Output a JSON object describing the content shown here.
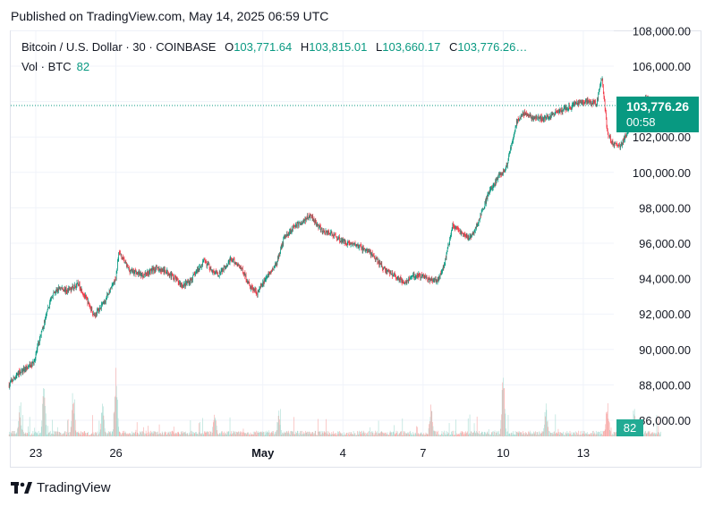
{
  "header": {
    "published": "Published on TradingView.com, May 14, 2025 06:59 UTC"
  },
  "legend": {
    "symbol": "Bitcoin / U.S. Dollar · 30 · COINBASE",
    "o_label": "O",
    "o": "103,771.64",
    "h_label": "H",
    "h": "103,815.01",
    "l_label": "L",
    "l": "103,660.17",
    "c_label": "C",
    "c": "103,776.26…",
    "vol_label": "Vol · BTC",
    "vol": "82"
  },
  "badges": {
    "price": "103,776.26",
    "countdown": "00:58",
    "volume": "82"
  },
  "footer": {
    "brand": "TradingView"
  },
  "colors": {
    "up": "#089981",
    "down": "#f23645",
    "vol_up": "#a9dcd3",
    "vol_down": "#f7a9a7",
    "grid": "#f0f3fa",
    "axis_text": "#131722"
  },
  "chart_data": {
    "type": "candlestick",
    "interval": "30 min",
    "y_axis_ticks": [
      "86,000.00",
      "88,000.00",
      "90,000.00",
      "92,000.00",
      "94,000.00",
      "96,000.00",
      "98,000.00",
      "100,000.00",
      "102,000.00",
      "104,000.00",
      "106,000.00",
      "108,000.00"
    ],
    "ylim": [
      85000,
      108200
    ],
    "x_axis_labels": [
      {
        "label": "23",
        "day": 0
      },
      {
        "label": "26",
        "day": 3
      },
      {
        "label": "May",
        "day": 8.5
      },
      {
        "label": "4",
        "day": 11.5
      },
      {
        "label": "7",
        "day": 14.5
      },
      {
        "label": "10",
        "day": 17.5
      },
      {
        "label": "13",
        "day": 20.5
      }
    ],
    "x_range_days": [
      -1,
      22.9
    ],
    "last_price": 103776.26,
    "price_path": [
      [
        -1,
        88000
      ],
      [
        -0.7,
        88600
      ],
      [
        -0.4,
        88900
      ],
      [
        -0.1,
        89200
      ],
      [
        0.1,
        90300
      ],
      [
        0.35,
        91700
      ],
      [
        0.6,
        93000
      ],
      [
        0.9,
        93500
      ],
      [
        1.2,
        93300
      ],
      [
        1.6,
        93700
      ],
      [
        2,
        92500
      ],
      [
        2.2,
        91900
      ],
      [
        2.6,
        92800
      ],
      [
        3,
        94000
      ],
      [
        3.1,
        95500
      ],
      [
        3.5,
        94500
      ],
      [
        4,
        94200
      ],
      [
        4.5,
        94600
      ],
      [
        5,
        94300
      ],
      [
        5.5,
        93600
      ],
      [
        5.8,
        93900
      ],
      [
        6.3,
        95000
      ],
      [
        6.8,
        94200
      ],
      [
        7.3,
        95100
      ],
      [
        7.7,
        94600
      ],
      [
        8,
        93600
      ],
      [
        8.3,
        93200
      ],
      [
        8.6,
        94000
      ],
      [
        9,
        94800
      ],
      [
        9.3,
        96300
      ],
      [
        9.7,
        97000
      ],
      [
        10,
        97200
      ],
      [
        10.3,
        97600
      ],
      [
        10.7,
        96700
      ],
      [
        11,
        96600
      ],
      [
        11.5,
        96100
      ],
      [
        12,
        95900
      ],
      [
        12.5,
        95500
      ],
      [
        13,
        94600
      ],
      [
        13.4,
        94200
      ],
      [
        13.8,
        93800
      ],
      [
        14.2,
        94200
      ],
      [
        14.6,
        94100
      ],
      [
        15,
        93800
      ],
      [
        15.3,
        94800
      ],
      [
        15.6,
        97000
      ],
      [
        16,
        96500
      ],
      [
        16.3,
        96300
      ],
      [
        16.6,
        97300
      ],
      [
        17,
        99000
      ],
      [
        17.3,
        99700
      ],
      [
        17.6,
        100200
      ],
      [
        18,
        102800
      ],
      [
        18.3,
        103400
      ],
      [
        18.6,
        103100
      ],
      [
        19,
        103000
      ],
      [
        19.5,
        103400
      ],
      [
        20,
        103700
      ],
      [
        20.5,
        104000
      ],
      [
        21,
        103900
      ],
      [
        21.2,
        105400
      ],
      [
        21.4,
        102300
      ],
      [
        21.6,
        101600
      ],
      [
        21.9,
        101500
      ],
      [
        22.3,
        102700
      ],
      [
        22.6,
        103700
      ],
      [
        22.85,
        104300
      ],
      [
        23.1,
        103700
      ],
      [
        23.4,
        103776
      ]
    ],
    "volume_btc_peaks": [
      {
        "day": -0.6,
        "v": 95
      },
      {
        "day": 0.3,
        "v": 190
      },
      {
        "day": 1.4,
        "v": 165
      },
      {
        "day": 2.5,
        "v": 110
      },
      {
        "day": 3.0,
        "v": 240
      },
      {
        "day": 6.7,
        "v": 85
      },
      {
        "day": 9.1,
        "v": 90
      },
      {
        "day": 14.8,
        "v": 105
      },
      {
        "day": 17.5,
        "v": 225
      },
      {
        "day": 19.1,
        "v": 110
      },
      {
        "day": 21.4,
        "v": 125
      },
      {
        "day": 22.4,
        "v": 105
      }
    ],
    "volume_btc_max": 255
  }
}
